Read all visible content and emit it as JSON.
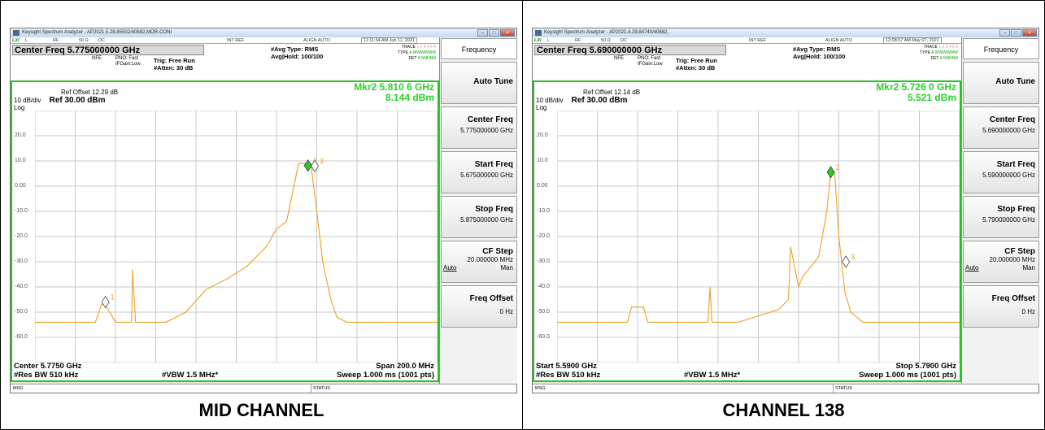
{
  "panels": [
    {
      "window_title": "Keysight Spectrum Analyzer - AP2021.5.28,85502/40882,MOR-CONI",
      "status": {
        "lxi": "LXI",
        "coupling": "L",
        "rf": "RF",
        "impedance": "50 Ω",
        "dc": "DC",
        "ref": "INT REF",
        "align": "ALIGN AUTO",
        "time": "11:11:34 AM Jun 11, 2021"
      },
      "center_freq": "Center Freq 5.775000000 GHz",
      "nfe": "NFE",
      "pno": "PNO: Fast",
      "ifgain": "IFGain:Low",
      "trig": "Trig: Free Run",
      "atten": "#Atten: 30 dB",
      "avg_type": "#Avg Type: RMS",
      "avg_hold": "Avg|Hold: 100/100",
      "trace_nums": "1 2 3 4 5 6",
      "type_row": "A WWWWWW",
      "det_row": "A NNNNN",
      "ref_offset": "Ref Offset 12.29 dB",
      "scale": "10 dB/div",
      "ref_level": "Ref 30.00 dBm",
      "log": "Log",
      "marker_freq": "Mkr2 5.810 6 GHz",
      "marker_level": "8.144 dBm",
      "bottom_left1": "Center 5.7750 GHz",
      "bottom_left2": "#Res BW 510 kHz",
      "bottom_mid": "#VBW 1.5 MHz*",
      "bottom_right1": "Span 200.0 MHz",
      "bottom_right2": "Sweep  1.000 ms (1001 pts)",
      "msg": "MSG",
      "status_label": "STATUS",
      "softkeys": {
        "menu": "Frequency",
        "auto_tune": "Auto Tune",
        "center_title": "Center Freq",
        "center_val": "5.775000000 GHz",
        "start_title": "Start Freq",
        "start_val": "5.675000000 GHz",
        "stop_title": "Stop Freq",
        "stop_val": "5.875000000 GHz",
        "cfstep_title": "CF Step",
        "cfstep_val": "20.000000 MHz",
        "auto": "Auto",
        "man": "Man",
        "offset_title": "Freq Offset",
        "offset_val": "0 Hz"
      },
      "caption": "MID CHANNEL"
    },
    {
      "window_title": "Keysight Spectrum Analyzer - AP2021.4.29,84740/40882,",
      "status": {
        "lxi": "LXI",
        "coupling": "L",
        "rf": "RF",
        "impedance": "50 Ω",
        "dc": "DC",
        "ref": "INT REF",
        "align": "ALIGN AUTO",
        "time": "12:08:07 AM May 07, 2021"
      },
      "center_freq": "Center Freq 5.690000000 GHz",
      "nfe": "NFE",
      "pno": "PNO: Fast",
      "ifgain": "IFGain:Low",
      "trig": "Trig: Free Run",
      "atten": "#Atten: 30 dB",
      "avg_type": "#Avg Type: RMS",
      "avg_hold": "Avg|Hold: 100/100",
      "trace_nums": "1 2 3 4 5 6",
      "type_row": "A WWWWWW",
      "det_row": "A NNNNN",
      "ref_offset": "Ref Offset 12.14 dB",
      "scale": "10 dB/div",
      "ref_level": "Ref 30.00 dBm",
      "log": "Log",
      "marker_freq": "Mkr2 5.726 0 GHz",
      "marker_level": "5.521 dBm",
      "bottom_left1": "Start 5.5900 GHz",
      "bottom_left2": "#Res BW 510 kHz",
      "bottom_mid": "#VBW 1.5 MHz*",
      "bottom_right1": "Stop 5.7900 GHz",
      "bottom_right2": "Sweep  1.000 ms (1001 pts)",
      "msg": "MSG",
      "status_label": "STATUS",
      "softkeys": {
        "menu": "Frequency",
        "auto_tune": "Auto Tune",
        "center_title": "Center Freq",
        "center_val": "5.690000000 GHz",
        "start_title": "Start Freq",
        "start_val": "5.590000000 GHz",
        "stop_title": "Stop Freq",
        "stop_val": "5.790000000 GHz",
        "cfstep_title": "CF Step",
        "cfstep_val": "20.000000 MHz",
        "auto": "Auto",
        "man": "Man",
        "offset_title": "Freq Offset",
        "offset_val": "0 Hz"
      },
      "caption": "CHANNEL 138"
    }
  ],
  "y_axis_labels": [
    "20.0",
    "10.0",
    "0.00",
    "-10.0",
    "-20.0",
    "-30.0",
    "-40.0",
    "-50.0",
    "-60.0"
  ],
  "colors": {
    "trace": "#f0a020",
    "frame": "#22c422",
    "marker_text": "#2ad12a",
    "grid": "#c8c8c8"
  },
  "chart_data": [
    {
      "type": "line",
      "title": "",
      "ylabel": "",
      "ylim": [
        -70,
        30
      ],
      "xlim": [
        5.675,
        5.875
      ],
      "series": [
        {
          "x": [
            5.675,
            5.705,
            5.708,
            5.71,
            5.715,
            5.72,
            5.723,
            5.7235,
            5.725,
            5.74,
            5.75,
            5.76,
            5.77,
            5.78,
            5.79,
            5.795,
            5.8,
            5.806,
            5.812,
            5.815,
            5.818,
            5.822,
            5.825,
            5.83,
            5.875
          ],
          "y": [
            -54,
            -54,
            -47,
            -47,
            -54,
            -54,
            -54,
            -33,
            -54,
            -54,
            -50,
            -41,
            -37,
            -32,
            -24,
            -17,
            -14,
            9,
            9,
            -10,
            -30,
            -45,
            -52,
            -54,
            -54
          ]
        }
      ],
      "markers": [
        {
          "id": "1",
          "x": 5.71,
          "y": -46
        },
        {
          "id": "2",
          "x": 5.8106,
          "y": 8.144
        },
        {
          "id": "3",
          "x": 5.814,
          "y": 8
        }
      ]
    },
    {
      "type": "line",
      "title": "",
      "ylabel": "",
      "ylim": [
        -70,
        30
      ],
      "xlim": [
        5.59,
        5.79
      ],
      "series": [
        {
          "x": [
            5.59,
            5.625,
            5.627,
            5.633,
            5.635,
            5.665,
            5.666,
            5.667,
            5.68,
            5.7,
            5.705,
            5.706,
            5.71,
            5.712,
            5.72,
            5.724,
            5.726,
            5.728,
            5.73,
            5.733,
            5.736,
            5.742,
            5.79
          ],
          "y": [
            -54,
            -54,
            -48,
            -48,
            -54,
            -54,
            -40,
            -54,
            -54,
            -49,
            -45,
            -24,
            -40,
            -36,
            -28,
            -10,
            6,
            5,
            -20,
            -42,
            -50,
            -54,
            -54
          ]
        }
      ],
      "markers": [
        {
          "id": "2",
          "x": 5.726,
          "y": 5.521
        },
        {
          "id": "3",
          "x": 5.7335,
          "y": -30
        }
      ]
    }
  ]
}
